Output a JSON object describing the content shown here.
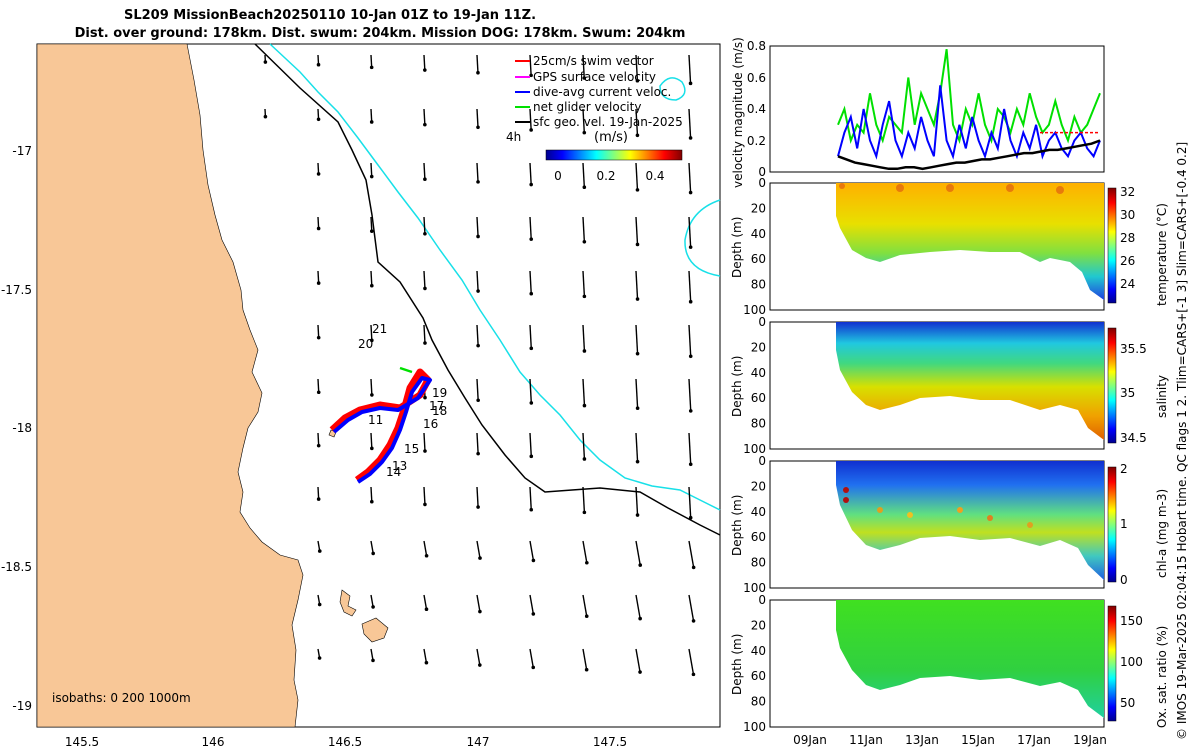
{
  "title": {
    "line1": "SL209 MissionBeach20250110 10-Jan 01Z to 19-Jan 11Z.",
    "line2": "Dist. over ground: 178km. Dist. swum: 204km. Mission DOG: 178km. Swum: 204km"
  },
  "map": {
    "legend": [
      {
        "label": "25cm/s swim vector",
        "color": "#ff0000"
      },
      {
        "label": "GPS surface velocity",
        "color": "#ff00ff"
      },
      {
        "label": "dive-avg current veloc.",
        "color": "#0000ff"
      },
      {
        "label": "net glider velocity",
        "color": "#00e000"
      },
      {
        "label": "sfc geo. vel. 19-Jan-2025",
        "color": "#000000"
      }
    ],
    "colorbar": {
      "title": "(m/s)",
      "ticks": [
        "0",
        "0.2",
        "0.4"
      ],
      "range": [
        0,
        0.5
      ]
    },
    "four_h_label": "4h",
    "isobaths_label": "isobaths: 0   200  1000m",
    "x_ticks": [
      "145.5",
      "146",
      "146.5",
      "147",
      "147.5"
    ],
    "y_ticks": [
      "-17",
      "-17.5",
      "-18",
      "-18.5",
      "-19"
    ],
    "day_labels": [
      "21",
      "20",
      "19",
      "17",
      "18",
      "16",
      "11",
      "15",
      "13",
      "14"
    ],
    "colors": {
      "land": "#f8c797",
      "isobath_200": "#000000",
      "isobath_1000": "#18e0e8"
    }
  },
  "chart_data": [
    {
      "type": "line",
      "title": "",
      "ylabel": "velocity magnitude (m/s)",
      "ylim": [
        0,
        0.8
      ],
      "yticks": [
        "0",
        "0.2",
        "0.4",
        "0.6",
        "0.8"
      ],
      "series": [
        {
          "name": "net glider velocity",
          "color": "#00e000",
          "values": [
            0.3,
            0.4,
            0.2,
            0.3,
            0.25,
            0.5,
            0.3,
            0.2,
            0.35,
            0.3,
            0.25,
            0.6,
            0.3,
            0.5,
            0.4,
            0.3,
            0.5,
            0.78,
            0.3,
            0.2,
            0.4,
            0.3,
            0.5,
            0.3,
            0.2,
            0.4,
            0.35,
            0.25,
            0.4,
            0.3,
            0.5,
            0.35,
            0.25,
            0.3,
            0.45,
            0.3,
            0.2,
            0.35,
            0.25,
            0.3,
            0.4,
            0.5
          ]
        },
        {
          "name": "dive-avg current veloc.",
          "color": "#0000ff",
          "values": [
            0.1,
            0.25,
            0.35,
            0.15,
            0.4,
            0.2,
            0.1,
            0.3,
            0.45,
            0.2,
            0.1,
            0.25,
            0.15,
            0.35,
            0.2,
            0.1,
            0.55,
            0.2,
            0.1,
            0.3,
            0.15,
            0.35,
            0.2,
            0.1,
            0.25,
            0.15,
            0.4,
            0.2,
            0.1,
            0.25,
            0.15,
            0.3,
            0.1,
            0.2,
            0.25,
            0.15,
            0.1,
            0.2,
            0.25,
            0.15,
            0.1,
            0.2
          ]
        },
        {
          "name": "sfc geo. vel.",
          "color": "#000000",
          "values": [
            0.1,
            0.08,
            0.06,
            0.05,
            0.04,
            0.03,
            0.02,
            0.02,
            0.03,
            0.03,
            0.02,
            0.03,
            0.04,
            0.05,
            0.06,
            0.06,
            0.07,
            0.08,
            0.08,
            0.09,
            0.1,
            0.11,
            0.12,
            0.12,
            0.13,
            0.14,
            0.14,
            0.15,
            0.16,
            0.17,
            0.18,
            0.2
          ]
        },
        {
          "name": "25cm/s swim vector",
          "color": "#ff0000",
          "values": [
            0.25
          ]
        }
      ]
    },
    {
      "type": "heatmap",
      "ylabel": "Depth (m)",
      "cbar_label": "temperature (°C)",
      "cbar_ticks": [
        "24",
        "26",
        "28",
        "30",
        "32"
      ],
      "yticks": [
        "0",
        "20",
        "40",
        "60",
        "80",
        "100"
      ]
    },
    {
      "type": "heatmap",
      "ylabel": "Depth (m)",
      "cbar_label": "salinity",
      "cbar_ticks": [
        "34.5",
        "35",
        "35.5"
      ],
      "yticks": [
        "0",
        "20",
        "40",
        "60",
        "80",
        "100"
      ]
    },
    {
      "type": "heatmap",
      "ylabel": "Depth (m)",
      "cbar_label": "chl-a (mg m-3)",
      "cbar_ticks": [
        "0",
        "1",
        "2"
      ],
      "yticks": [
        "0",
        "20",
        "40",
        "60",
        "80",
        "100"
      ]
    },
    {
      "type": "heatmap",
      "ylabel": "Depth (m)",
      "cbar_label": "Ox. sat. ratio (%)",
      "cbar_ticks": [
        "50",
        "100",
        "150"
      ],
      "yticks": [
        "0",
        "20",
        "40",
        "60",
        "80",
        "100"
      ]
    }
  ],
  "time_axis": {
    "ticks": [
      "09Jan",
      "11Jan",
      "13Jan",
      "15Jan",
      "17Jan",
      "19Jan"
    ]
  },
  "side_note": "© IMOS 19-Mar-2025 02:04:15 Hobart time. QC flags 1  2. Tlim=CARS+[-1 3] Slim=CARS+[-0.4 0.2]"
}
